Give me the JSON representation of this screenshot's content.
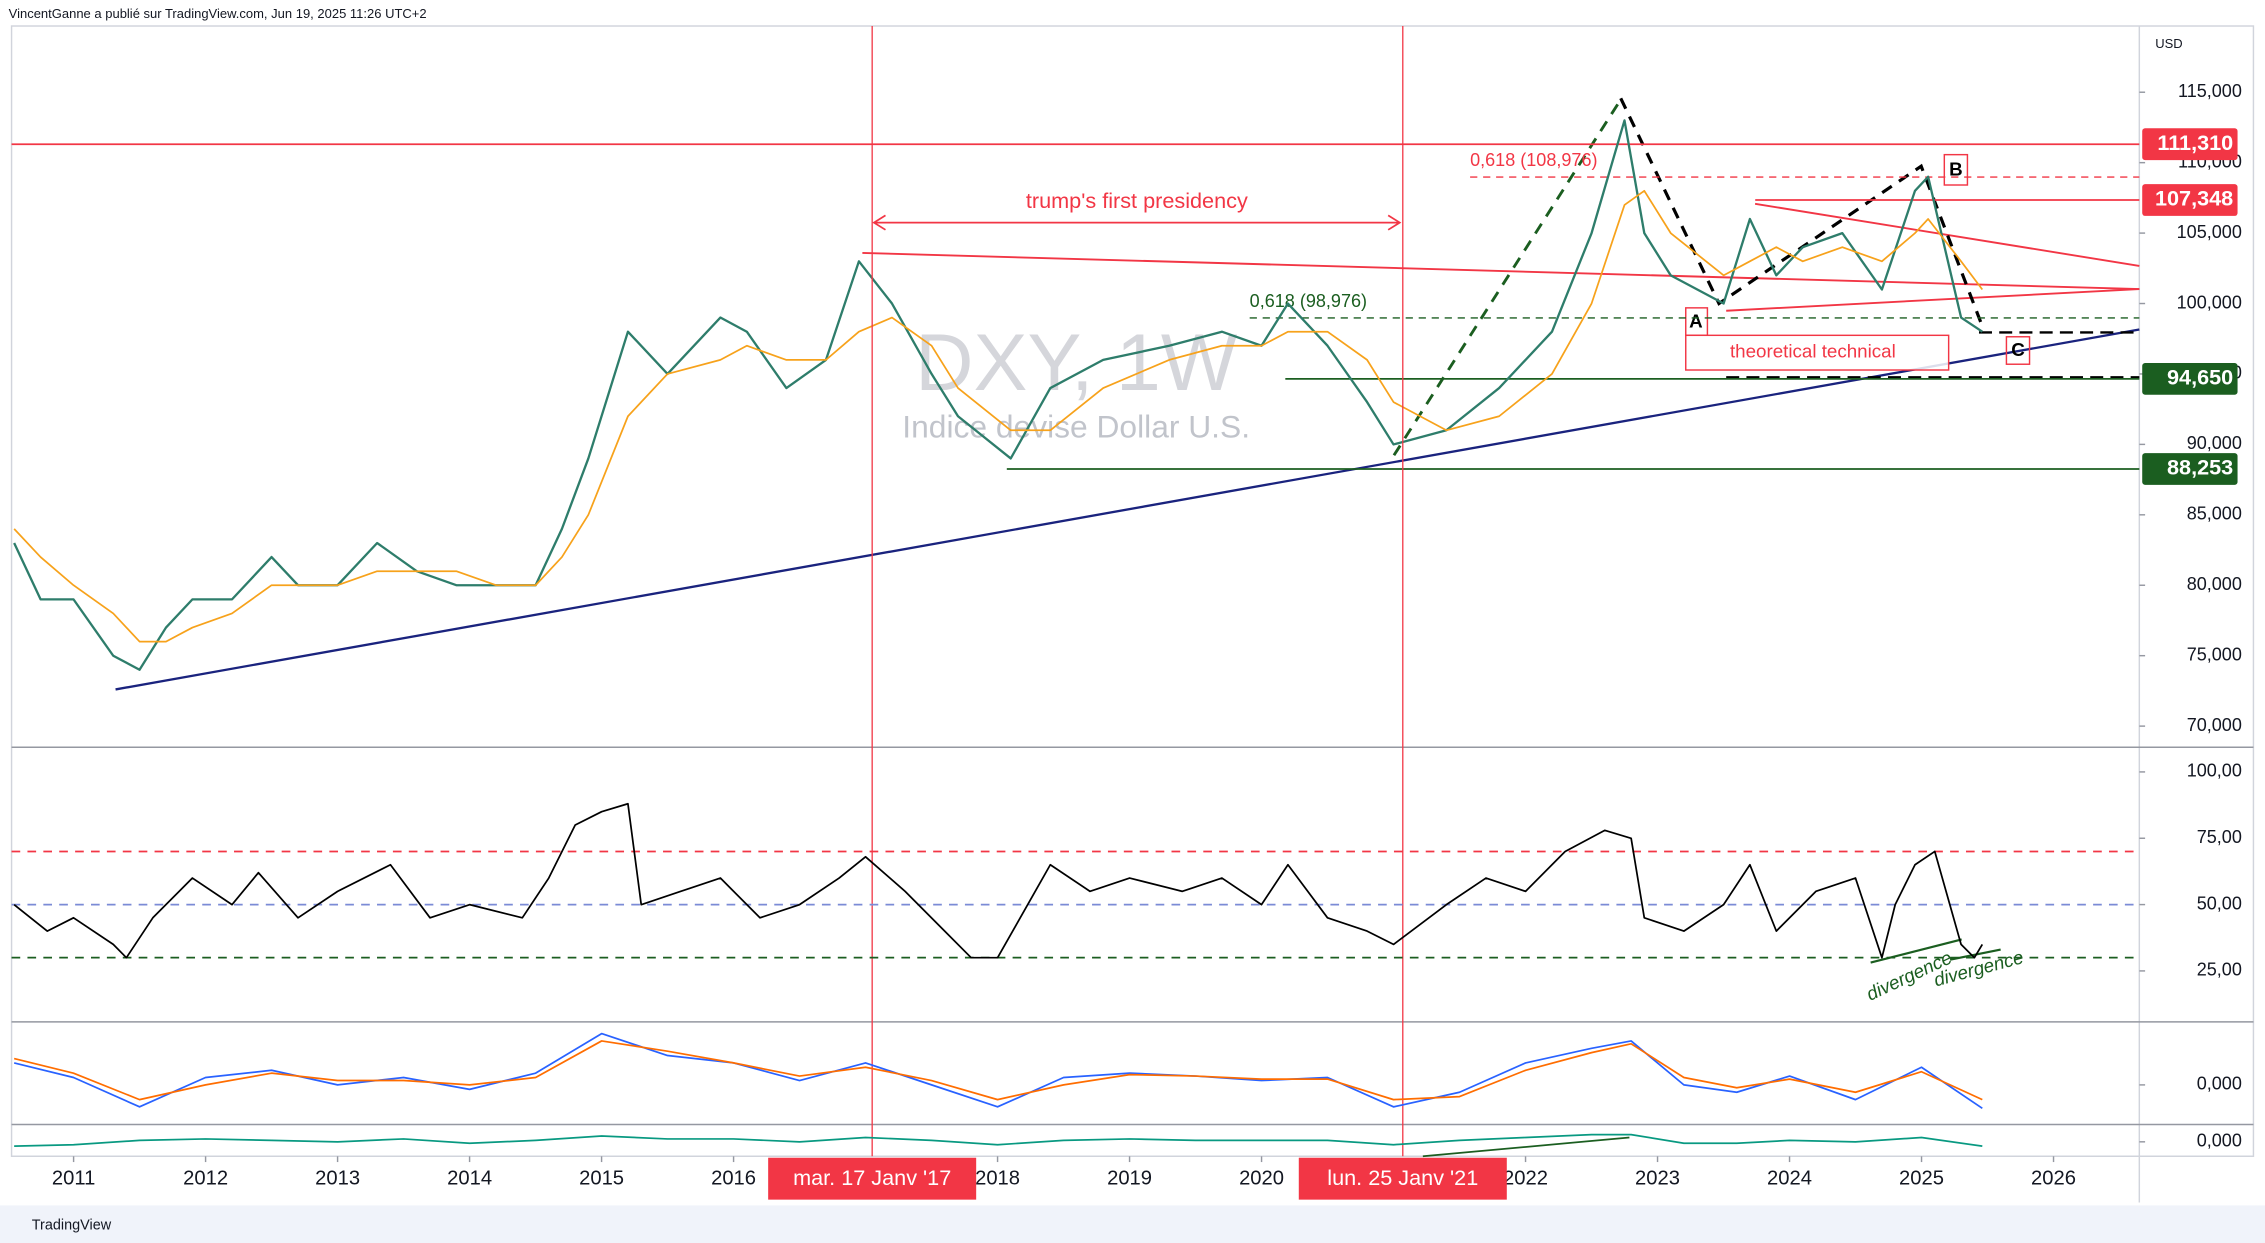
{
  "header": "VincentGanne a publié sur TradingView.com, Jun 19, 2025 11:26 UTC+2",
  "footer": "TradingView",
  "annotations": {
    "presidency": "trump's first presidency",
    "theoretical": "theoretical technical",
    "a": "A",
    "b": "B",
    "c": "C",
    "divergence_1": "divergence",
    "divergence_2": "divergence"
  },
  "chart_data": [
    {
      "type": "line",
      "title": "DXY, 1W",
      "subtitle": "Indice devise Dollar U.S.",
      "currency": "USD",
      "xlim": [
        2010.53,
        2026.65
      ],
      "ylim": [
        68.5,
        119.7
      ],
      "xticks": [
        2011,
        2012,
        2013,
        2014,
        2015,
        2016,
        2018,
        2019,
        2020,
        2022,
        2023,
        2024,
        2025,
        2026
      ],
      "yticks": [
        {
          "value": 70,
          "label": "70,000"
        },
        {
          "value": 75,
          "label": "75,000"
        },
        {
          "value": 80,
          "label": "80,000"
        },
        {
          "value": 85,
          "label": "85,000"
        },
        {
          "value": 90,
          "label": "90,000"
        },
        {
          "value": 95,
          "label": "95,000"
        },
        {
          "value": 100,
          "label": "100,000"
        },
        {
          "value": 105,
          "label": "105,000"
        },
        {
          "value": 110,
          "label": "110,000"
        },
        {
          "value": 115,
          "label": "115,000"
        }
      ],
      "x": [
        2010.55,
        2010.75,
        2011.0,
        2011.3,
        2011.5,
        2011.7,
        2011.9,
        2012.2,
        2012.5,
        2012.7,
        2013.0,
        2013.3,
        2013.6,
        2013.9,
        2014.2,
        2014.5,
        2014.7,
        2014.9,
        2015.2,
        2015.5,
        2015.9,
        2016.1,
        2016.4,
        2016.7,
        2016.95,
        2017.2,
        2017.5,
        2017.7,
        2018.1,
        2018.4,
        2018.8,
        2019.3,
        2019.7,
        2020.0,
        2020.2,
        2020.5,
        2020.8,
        2021.0,
        2021.4,
        2021.8,
        2022.2,
        2022.5,
        2022.75,
        2022.9,
        2023.1,
        2023.5,
        2023.7,
        2023.9,
        2024.1,
        2024.4,
        2024.7,
        2024.95,
        2025.05,
        2025.3,
        2025.46
      ],
      "series": [
        {
          "color": "#2e7d6b",
          "values": [
            83,
            79,
            79,
            75,
            74,
            77,
            79,
            79,
            82,
            80,
            80,
            83,
            81,
            80,
            80,
            80,
            84,
            89,
            98,
            95,
            99,
            98,
            94,
            96,
            103,
            100,
            95,
            92,
            89,
            94,
            96,
            97,
            98,
            97,
            100,
            97,
            93,
            90,
            91,
            94,
            98,
            105,
            113,
            105,
            102,
            100,
            106,
            102,
            104,
            105,
            101,
            108,
            109,
            99,
            98
          ]
        },
        {
          "color": "#f7a21b",
          "values": [
            84,
            82,
            80,
            78,
            76,
            76,
            77,
            78,
            80,
            80,
            80,
            81,
            81,
            81,
            80,
            80,
            82,
            85,
            92,
            95,
            96,
            97,
            96,
            96,
            98,
            99,
            97,
            94,
            91,
            91,
            94,
            96,
            97,
            97,
            98,
            98,
            96,
            93,
            91,
            92,
            95,
            100,
            107,
            108,
            105,
            102,
            103,
            104,
            103,
            104,
            103,
            105,
            106,
            103,
            101
          ]
        }
      ],
      "levels": [
        {
          "value": 111.31,
          "label": "111,310",
          "color": "#f23645",
          "x0": 2010.53
        },
        {
          "value": 107.348,
          "label": "107,348",
          "color": "#f23645",
          "x0": 2023.74
        },
        {
          "value": 94.65,
          "label": "94,650",
          "color": "#1b5e20",
          "x0": 2020.18
        },
        {
          "value": 88.253,
          "label": "88,253",
          "color": "#1b5e20",
          "x0": 2018.07
        }
      ],
      "fib_levels": [
        {
          "value": 108.976,
          "label": "0,618 (108,976)",
          "color": "#f23645",
          "x0": 2021.58
        },
        {
          "value": 98.976,
          "label": "0,618 (98,976)",
          "color": "#1b5e20",
          "x0": 2019.91
        }
      ],
      "events": [
        {
          "value": 2017.05,
          "label": "mar. 17 Janv '17"
        },
        {
          "value": 2021.07,
          "label": "lun. 25 Janv '21"
        }
      ]
    },
    {
      "type": "line",
      "xlim": [
        2010.53,
        2026.65
      ],
      "ylim": [
        5.8,
        109.3
      ],
      "yticks": [
        {
          "value": 25,
          "label": "25,00"
        },
        {
          "value": 50,
          "label": "50,00"
        },
        {
          "value": 75,
          "label": "75,00"
        },
        {
          "value": 100,
          "label": "100,00"
        }
      ],
      "x": [
        2010.55,
        2010.8,
        2011.0,
        2011.3,
        2011.4,
        2011.6,
        2011.9,
        2012.2,
        2012.4,
        2012.7,
        2013.0,
        2013.4,
        2013.7,
        2014.0,
        2014.4,
        2014.6,
        2014.8,
        2015.0,
        2015.2,
        2015.3,
        2015.6,
        2015.9,
        2016.2,
        2016.5,
        2016.8,
        2017.0,
        2017.3,
        2017.6,
        2017.8,
        2018.0,
        2018.4,
        2018.7,
        2019.0,
        2019.4,
        2019.7,
        2020.0,
        2020.2,
        2020.5,
        2020.8,
        2021.0,
        2021.4,
        2021.7,
        2022.0,
        2022.3,
        2022.6,
        2022.8,
        2022.9,
        2023.2,
        2023.5,
        2023.7,
        2023.9,
        2024.2,
        2024.5,
        2024.7,
        2024.8,
        2024.95,
        2025.1,
        2025.3,
        2025.4,
        2025.46
      ],
      "series": [
        {
          "color": "#000000",
          "values": [
            50,
            40,
            45,
            35,
            30,
            45,
            60,
            50,
            62,
            45,
            55,
            65,
            45,
            50,
            45,
            60,
            80,
            85,
            88,
            50,
            55,
            60,
            45,
            50,
            60,
            68,
            55,
            40,
            30,
            30,
            65,
            55,
            60,
            55,
            60,
            50,
            65,
            45,
            40,
            35,
            50,
            60,
            55,
            70,
            78,
            75,
            45,
            40,
            50,
            65,
            40,
            55,
            60,
            30,
            50,
            65,
            70,
            35,
            30,
            35
          ]
        }
      ],
      "levels": [
        {
          "value": 70,
          "color": "#f23645"
        },
        {
          "value": 50,
          "color": "#7b8bd6"
        },
        {
          "value": 30,
          "color": "#1b5e20"
        }
      ]
    },
    {
      "type": "line",
      "xlim": [
        2010.53,
        2026.65
      ],
      "ylim": [
        -2.7,
        4.3
      ],
      "yticks": [
        {
          "value": 0,
          "label": "0,000"
        }
      ],
      "x": [
        2010.55,
        2011.0,
        2011.5,
        2012.0,
        2012.5,
        2013.0,
        2013.5,
        2014.0,
        2014.5,
        2015.0,
        2015.5,
        2016.0,
        2016.5,
        2017.0,
        2017.5,
        2018.0,
        2018.5,
        2019.0,
        2019.5,
        2020.0,
        2020.5,
        2021.0,
        2021.5,
        2022.0,
        2022.5,
        2022.8,
        2023.2,
        2023.6,
        2024.0,
        2024.5,
        2025.0,
        2025.46
      ],
      "series": [
        {
          "color": "#2962ff",
          "values": [
            1.5,
            0.5,
            -1.5,
            0.5,
            1,
            0,
            0.5,
            -0.3,
            0.8,
            3.5,
            2,
            1.5,
            0.3,
            1.5,
            0,
            -1.5,
            0.5,
            0.8,
            0.6,
            0.3,
            0.5,
            -1.5,
            -0.5,
            1.5,
            2.5,
            3,
            0,
            -0.5,
            0.6,
            -1,
            1.2,
            -1.6
          ]
        },
        {
          "color": "#ff6d00",
          "values": [
            1.8,
            0.8,
            -1,
            0,
            0.8,
            0.3,
            0.3,
            0,
            0.5,
            3,
            2.3,
            1.5,
            0.6,
            1.2,
            0.3,
            -1,
            0,
            0.7,
            0.6,
            0.4,
            0.4,
            -1,
            -0.8,
            1,
            2.2,
            2.8,
            0.5,
            -0.2,
            0.4,
            -0.5,
            0.9,
            -1
          ]
        }
      ]
    },
    {
      "type": "line",
      "xlim": [
        2010.53,
        2026.65
      ],
      "ylim": [
        -1,
        1.2
      ],
      "yticks": [
        {
          "value": 0,
          "label": "0,000"
        }
      ],
      "x": [
        2010.55,
        2011.0,
        2011.5,
        2012.0,
        2012.5,
        2013.0,
        2013.5,
        2014.0,
        2014.5,
        2015.0,
        2015.5,
        2016.0,
        2016.5,
        2017.0,
        2017.5,
        2018.0,
        2018.5,
        2019.0,
        2019.5,
        2020.0,
        2020.5,
        2021.0,
        2021.5,
        2022.0,
        2022.5,
        2022.8,
        2023.2,
        2023.6,
        2024.0,
        2024.5,
        2025.0,
        2025.46
      ],
      "series": [
        {
          "color": "#089981",
          "values": [
            -0.3,
            -0.2,
            0.1,
            0.2,
            0.1,
            0,
            0.2,
            -0.1,
            0.1,
            0.4,
            0.2,
            0.2,
            0,
            0.3,
            0.1,
            -0.2,
            0.1,
            0.2,
            0.1,
            0.1,
            0.1,
            -0.2,
            0.1,
            0.3,
            0.5,
            0.5,
            -0.1,
            -0.1,
            0.1,
            0,
            0.3,
            -0.3
          ]
        }
      ]
    }
  ]
}
